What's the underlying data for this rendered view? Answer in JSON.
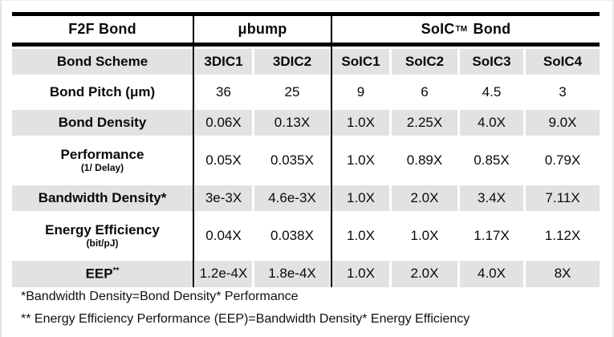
{
  "table": {
    "group_header": {
      "f2f": "F2F Bond",
      "ubump": "μbump",
      "soic_pre": "SoIC",
      "soic_sup": "TM",
      "soic_post": "Bond"
    },
    "columns": [
      "Bond Scheme",
      "3DIC1",
      "3DIC2",
      "SoIC1",
      "SoIC2",
      "SoIC3",
      "SoIC4"
    ],
    "rows": [
      {
        "label": "Bond Pitch (μm)",
        "values": [
          "36",
          "25",
          "9",
          "6",
          "4.5",
          "3"
        ]
      },
      {
        "label": "Bond Density",
        "values": [
          "0.06X",
          "0.13X",
          "1.0X",
          "2.25X",
          "4.0X",
          "9.0X"
        ]
      },
      {
        "label": "Performance",
        "sub": "(1/ Delay)",
        "values": [
          "0.05X",
          "0.035X",
          "1.0X",
          "0.89X",
          "0.85X",
          "0.79X"
        ]
      },
      {
        "label": "Bandwidth Density*",
        "values": [
          "3e-3X",
          "4.6e-3X",
          "1.0X",
          "2.0X",
          "3.4X",
          "7.11X"
        ]
      },
      {
        "label": "Energy Efficiency",
        "sub": "(bit/pJ)",
        "values": [
          "0.04X",
          "0.038X",
          "1.0X",
          "1.0X",
          "1.17X",
          "1.12X"
        ]
      },
      {
        "label": "EEP",
        "label_sup": "**",
        "values": [
          "1.2e-4X",
          "1.8e-4X",
          "1.0X",
          "2.0X",
          "4.0X",
          "8X"
        ]
      }
    ],
    "footnotes": [
      "*Bandwidth Density=Bond Density* Performance",
      "** Energy Efficiency Performance (EEP)=Bandwidth Density* Energy Efficiency"
    ]
  },
  "colors": {
    "row_shade": "#e2e2e2",
    "line": "#000000",
    "background": "#ffffff"
  }
}
